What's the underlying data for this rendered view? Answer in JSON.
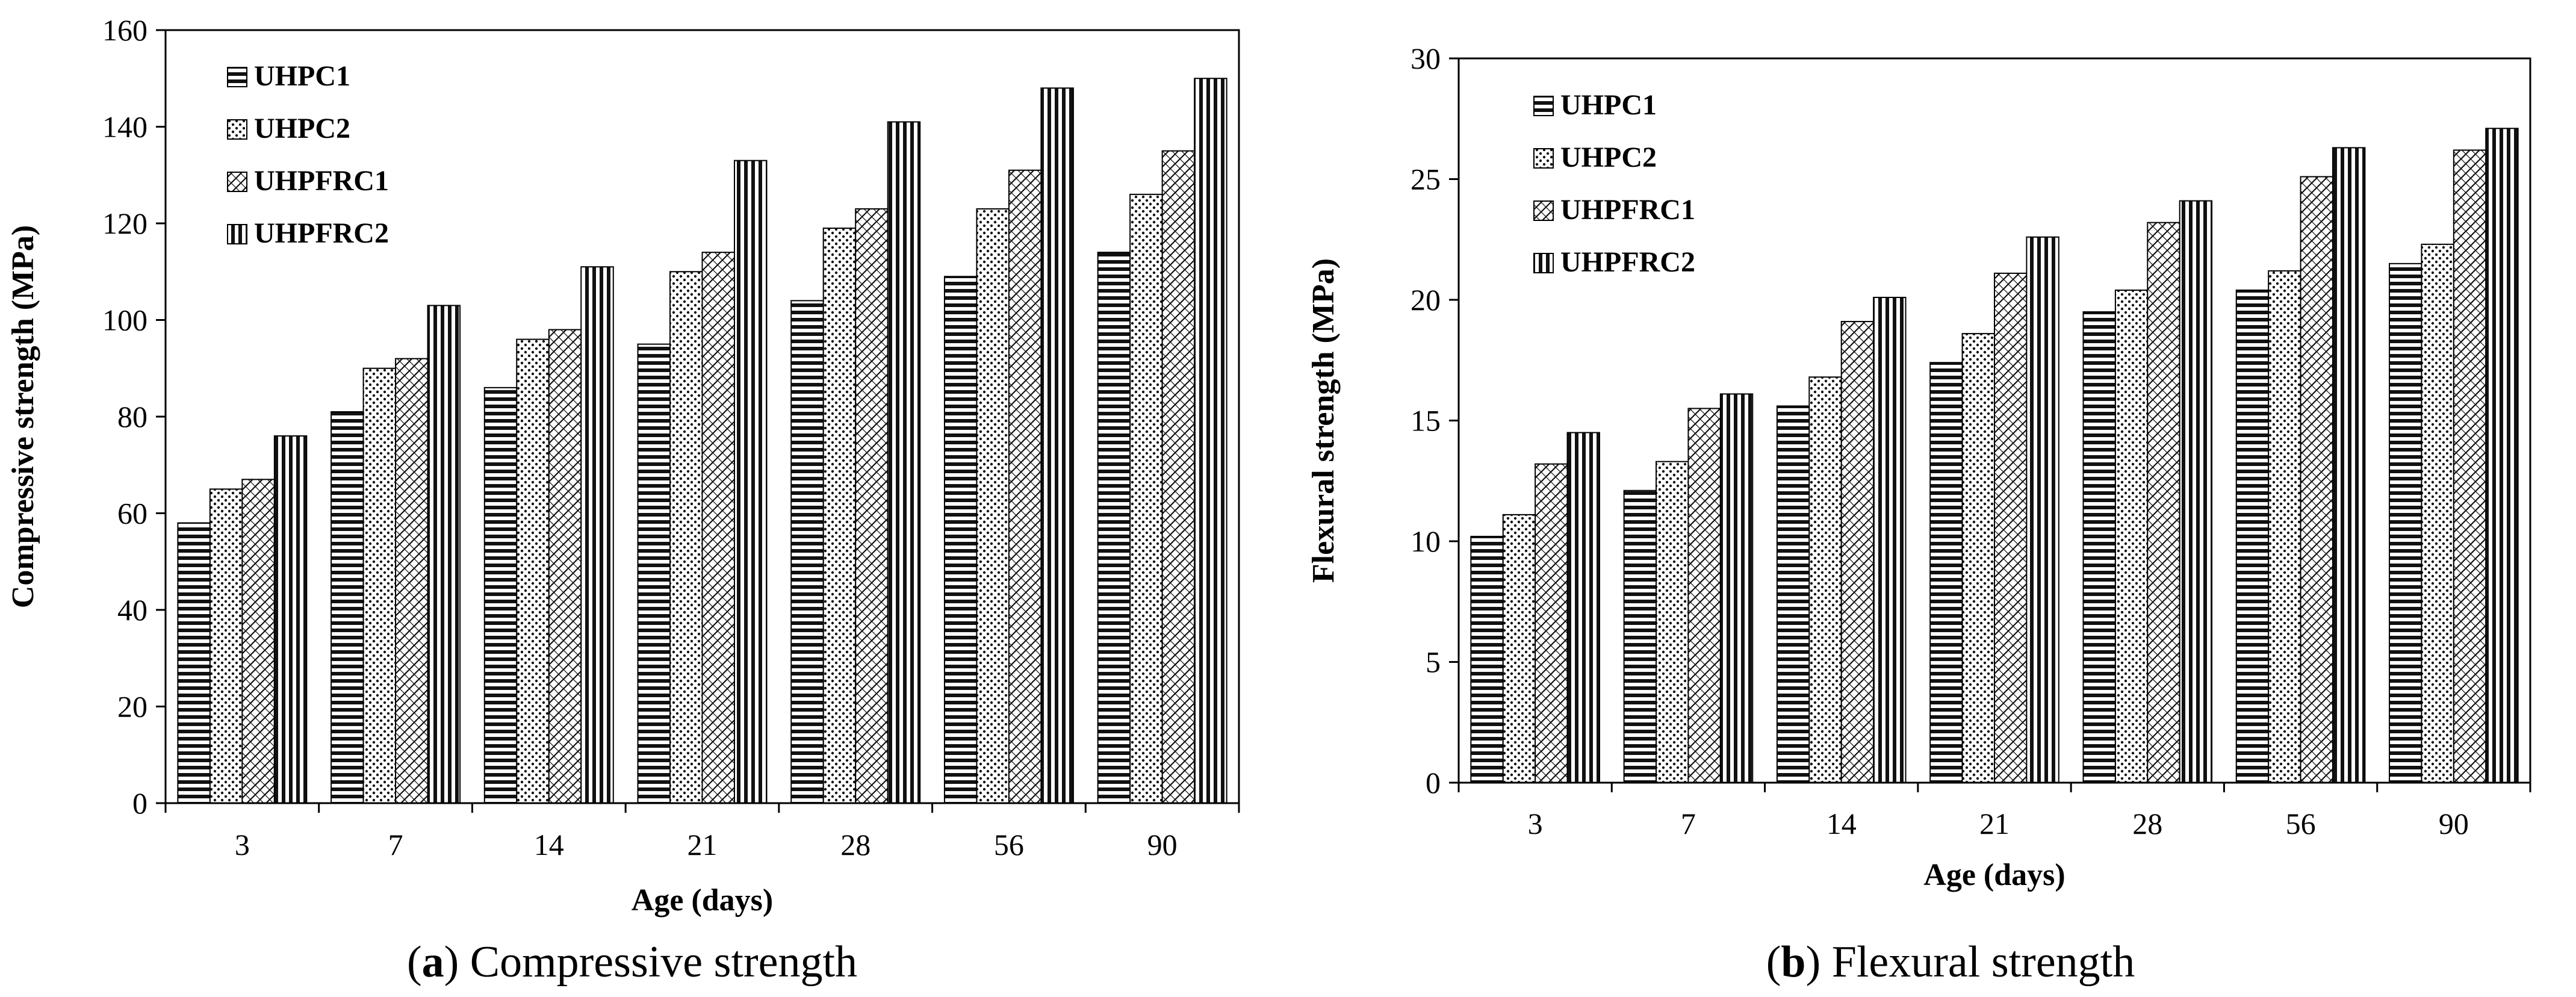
{
  "chart_data": [
    {
      "type": "bar",
      "caption_letter": "a",
      "caption_text": "Compressive strength",
      "xlabel": "Age (days)",
      "ylabel": "Compressive strength (MPa)",
      "categories": [
        "3",
        "7",
        "14",
        "21",
        "28",
        "56",
        "90"
      ],
      "ylim": [
        0,
        160
      ],
      "yticks": [
        "0",
        "20",
        "40",
        "60",
        "80",
        "100",
        "120",
        "140",
        "160"
      ],
      "grid": false,
      "legend_position": "top-left",
      "series": [
        {
          "name": "UHPC1",
          "pattern": "hstripe",
          "values": [
            58,
            81,
            86,
            95,
            104,
            109,
            114
          ]
        },
        {
          "name": "UHPC2",
          "pattern": "dots",
          "values": [
            65,
            90,
            96,
            110,
            119,
            123,
            126
          ]
        },
        {
          "name": "UHPFRC1",
          "pattern": "diag",
          "values": [
            67,
            92,
            98,
            114,
            123,
            131,
            135
          ]
        },
        {
          "name": "UHPFRC2",
          "pattern": "vstripe",
          "values": [
            76,
            103,
            111,
            133,
            141,
            148,
            150
          ]
        }
      ]
    },
    {
      "type": "bar",
      "caption_letter": "b",
      "caption_text": "Flexural strength",
      "xlabel": "Age (days)",
      "ylabel": "Flexural strength (MPa)",
      "categories": [
        "3",
        "7",
        "14",
        "21",
        "28",
        "56",
        "90"
      ],
      "ylim": [
        0,
        30
      ],
      "yticks": [
        "0",
        "5",
        "10",
        "15",
        "20",
        "25",
        "30"
      ],
      "grid": false,
      "legend_position": "top-left",
      "series": [
        {
          "name": "UHPC1",
          "pattern": "hstripe",
          "values": [
            10.2,
            12.1,
            15.6,
            17.4,
            19.5,
            20.4,
            21.5
          ]
        },
        {
          "name": "UHPC2",
          "pattern": "dots",
          "values": [
            11.1,
            13.3,
            16.8,
            18.6,
            20.4,
            21.2,
            22.3
          ]
        },
        {
          "name": "UHPFRC1",
          "pattern": "diag",
          "values": [
            13.2,
            15.5,
            19.1,
            21.1,
            23.2,
            25.1,
            26.2
          ]
        },
        {
          "name": "UHPFRC2",
          "pattern": "vstripe",
          "values": [
            14.5,
            16.1,
            20.1,
            22.6,
            24.1,
            26.3,
            27.1
          ]
        }
      ]
    }
  ]
}
